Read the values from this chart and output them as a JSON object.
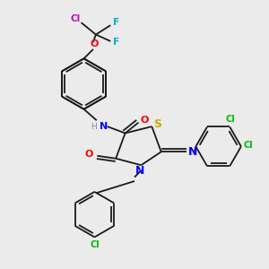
{
  "bg_color": "#ebebeb",
  "bond_color": "#1a1a1a",
  "bond_lw": 1.3,
  "atom_colors": {
    "N": "#0000ff",
    "O": "#ff0000",
    "S": "#ccaa00",
    "Cl_green": "#00bb00",
    "Cl_magenta": "#cc00cc",
    "F_cyan": "#00aacc",
    "H_gray": "#888888"
  },
  "xlim": [
    0,
    10
  ],
  "ylim": [
    0,
    10
  ]
}
